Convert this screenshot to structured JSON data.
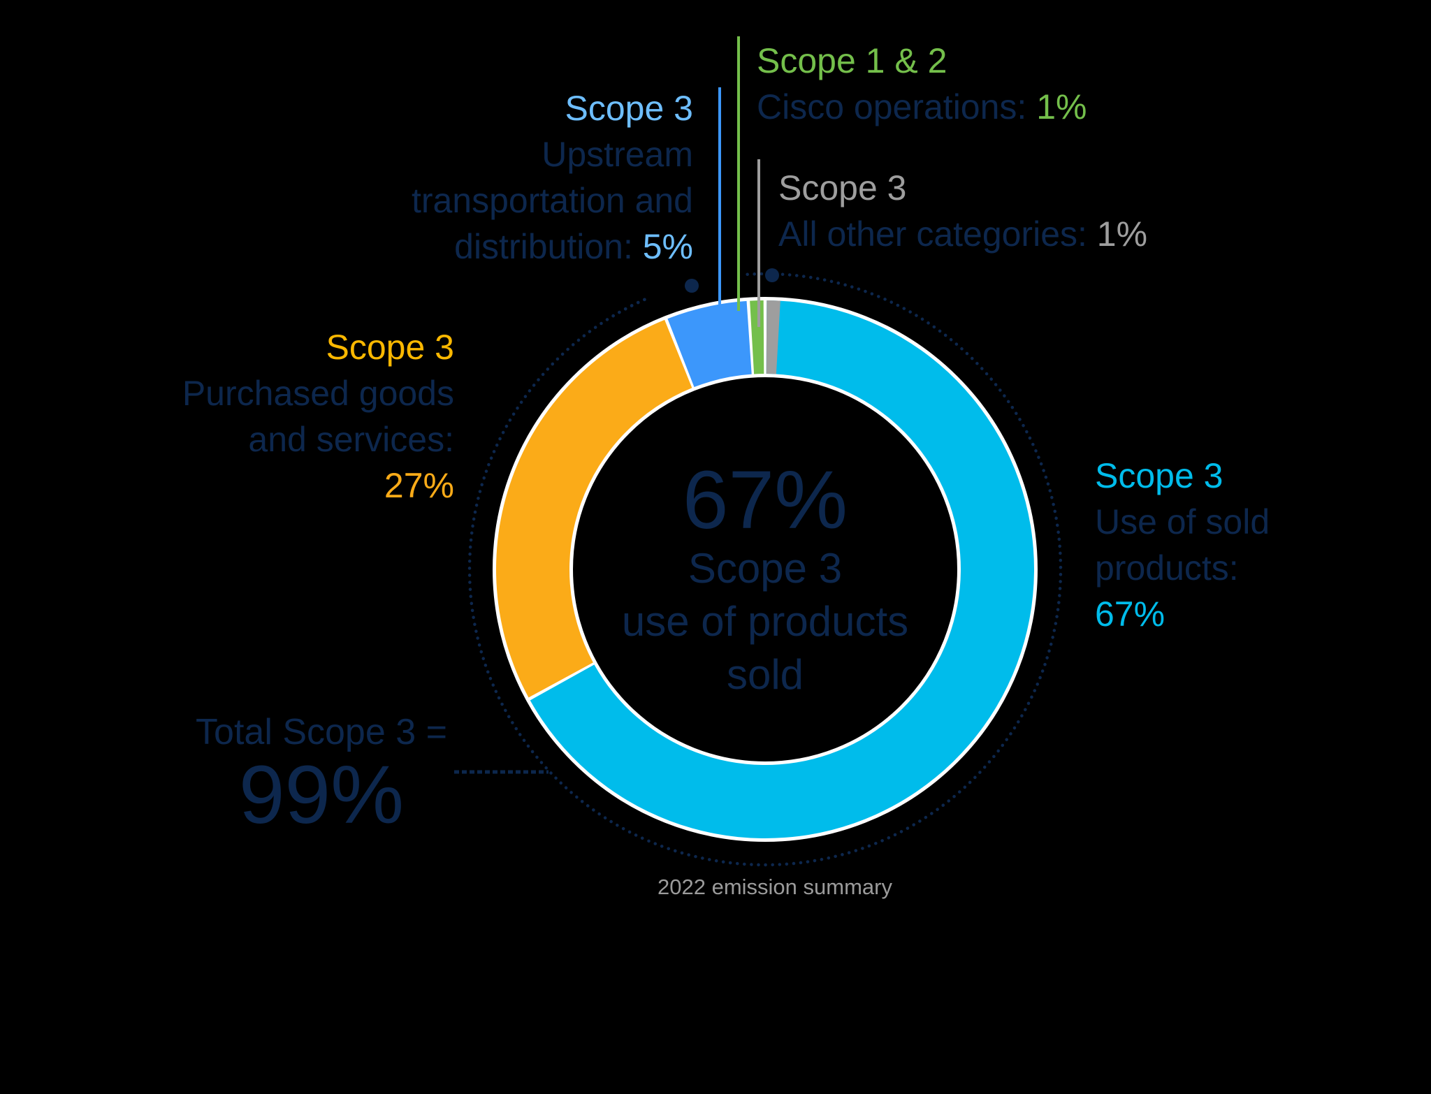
{
  "chart_data": {
    "type": "pie",
    "variant": "donut",
    "title": "2022 emission summary",
    "center": {
      "value": "67%",
      "label_lines": [
        "Scope 3",
        "use of products",
        "sold"
      ]
    },
    "slices": [
      {
        "scope": "Scope 3",
        "label": "Use of sold products",
        "value": 67,
        "color": "#00bceb"
      },
      {
        "scope": "Scope 3",
        "label": "Purchased goods and services",
        "value": 27,
        "color": "#fbab18"
      },
      {
        "scope": "Scope 3",
        "label": "Upstream transportation and distribution",
        "value": 5,
        "color": "#3c97fb"
      },
      {
        "scope": "Scope 1 & 2",
        "label": "Cisco operations",
        "value": 1,
        "color": "#74bf4b"
      },
      {
        "scope": "Scope 3",
        "label": "All other categories",
        "value": 1,
        "color": "#9e9e9e"
      }
    ],
    "total": {
      "label": "Total Scope 3 =",
      "value": "99%"
    },
    "legend_position": "callouts around ring",
    "units": "%"
  },
  "labels": {
    "use_sold": {
      "scope": "Scope 3",
      "lines": [
        "Use of sold",
        "products:"
      ],
      "pct": "67%"
    },
    "purchased": {
      "scope": "Scope 3",
      "lines": [
        "Purchased goods",
        "and services:"
      ],
      "pct": "27%"
    },
    "upstream": {
      "scope": "Scope 3",
      "lines": [
        "Upstream",
        "transportation and",
        "distribution: "
      ],
      "pct": "5%"
    },
    "ops": {
      "scope": "Scope 1 & 2",
      "text": "Cisco operations: ",
      "pct": "1%"
    },
    "other": {
      "scope": "Scope 3",
      "text": "All other categories: ",
      "pct": "1%"
    }
  },
  "colors": {
    "navy": "#0d274d",
    "cyan": "#00bceb",
    "orange": "#fbab18",
    "blue": "#3c97fb",
    "light_blue_text": "#6ebeff",
    "green": "#74bf4b",
    "gray": "#9e9e9e",
    "amber_text": "#fbb800"
  },
  "caption": "2022 emission summary"
}
